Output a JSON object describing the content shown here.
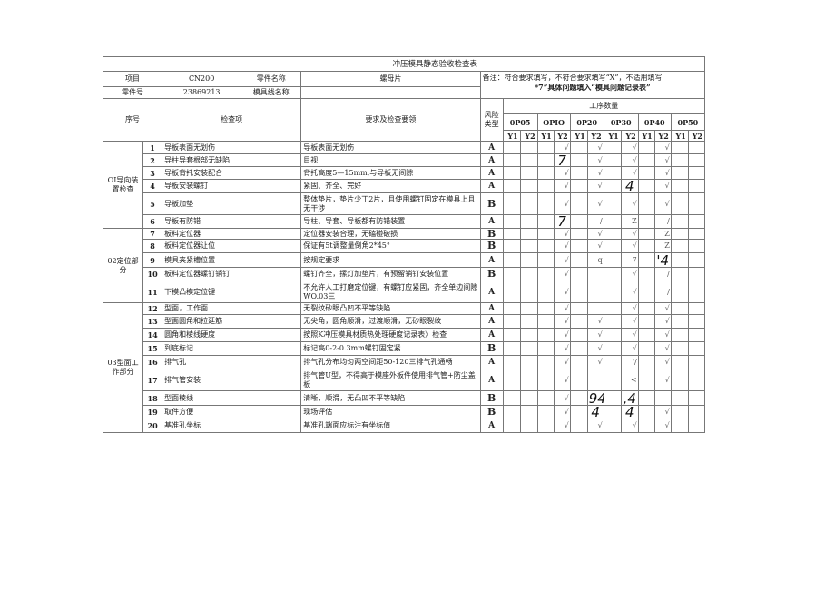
{
  "title": "冲压模具静态验收检查表",
  "header": {
    "project_label": "项目",
    "project_value": "CN200",
    "part_name_label": "零件名称",
    "part_name_value": "螺母片",
    "part_no_label": "零件号",
    "part_no_value": "23869213",
    "die_line_label": "模具线名称",
    "die_line_value": "",
    "note_line1": "备注：符合要求填写，不符合要求填写“X”，不适用填写",
    "note_line2": "*7”具体问题填入“模具问题记录表”"
  },
  "columns": {
    "no": "序号",
    "item": "检查项",
    "requirement": "要求及检查要领",
    "risk": "风险类型",
    "process_count": "工序数量",
    "ops": [
      "0P05",
      "OPIO",
      "0P20",
      "0P30",
      "0P40",
      "0P50"
    ],
    "sub": [
      "Y1",
      "Y2",
      "Y1",
      "Y2",
      "Y1",
      "Y2",
      "Y1",
      "Y2",
      "Y1",
      "Y2",
      "Y1",
      "Y2"
    ]
  },
  "sections": [
    {
      "name": "OI导向装置检查",
      "rows": 6
    },
    {
      "name": "02定位部分",
      "rows": 5
    },
    {
      "name": "03型面工作部分",
      "rows": 9
    }
  ],
  "rows": [
    {
      "no": "1",
      "item": "导板表面无划伤",
      "req": "导板表面无划伤",
      "risk": "A",
      "marks": [
        "",
        "",
        "",
        "√",
        "",
        "√",
        "",
        "√",
        "",
        "√",
        "",
        ""
      ]
    },
    {
      "no": "2",
      "item": "导柱导套根部无缺陷",
      "req": "目视",
      "risk": "A",
      "marks": [
        "",
        "",
        "",
        "7",
        "",
        "√",
        "",
        "√",
        "",
        "√",
        "",
        ""
      ]
    },
    {
      "no": "3",
      "item": "导板背托安装配合",
      "req": "背托高度5—15mm,与导板无间隙",
      "risk": "A",
      "marks": [
        "",
        "",
        "",
        "√",
        "",
        "√",
        "",
        "√",
        "",
        "√",
        "",
        ""
      ]
    },
    {
      "no": "4",
      "item": "导板安装螺钉",
      "req": "紧固、齐全、完好",
      "risk": "A",
      "marks": [
        "",
        "",
        "",
        "√",
        "",
        "√",
        "",
        "4",
        "",
        "√",
        "",
        ""
      ]
    },
    {
      "no": "5",
      "item": "导板加垫",
      "req": "整体垫片，垫片少丁2片，且使用螺钉固定在模具上且无干涉",
      "risk": "B",
      "marks": [
        "",
        "",
        "",
        "√",
        "",
        "√",
        "",
        "√",
        "",
        "√",
        "",
        ""
      ]
    },
    {
      "no": "6",
      "item": "导板有防错",
      "req": "导柱、导套、导板都有防错装置",
      "risk": "A",
      "marks": [
        "",
        "",
        "",
        "7",
        "",
        "/",
        "",
        "Z",
        "",
        "/",
        "",
        ""
      ]
    },
    {
      "no": "7",
      "item": "板料定位器",
      "req": "定位器安装合理，无磕碰破损",
      "risk": "B",
      "marks": [
        "",
        "",
        "",
        "√",
        "",
        "√",
        "",
        "√",
        "",
        "Z",
        "",
        ""
      ]
    },
    {
      "no": "8",
      "item": "板料定位器让位",
      "req": "保证有5t调整量倒角2*45°",
      "risk": "B",
      "marks": [
        "",
        "",
        "",
        "√",
        "",
        "√",
        "",
        "√",
        "",
        "Z",
        "",
        ""
      ]
    },
    {
      "no": "9",
      "item": "模具夹紧槽位置",
      "req": "按规定要求",
      "risk": "A",
      "marks": [
        "",
        "",
        "",
        "√",
        "",
        "q",
        "",
        "7",
        "",
        "'4",
        "",
        ""
      ]
    },
    {
      "no": "10",
      "item": "板料定位器螺钉销钉",
      "req": "螺钉齐全，摞灯加垫片，有预留销钉安装位置",
      "risk": "B",
      "marks": [
        "",
        "",
        "",
        "√",
        "",
        "",
        "",
        "√",
        "",
        "/",
        "",
        ""
      ]
    },
    {
      "no": "11",
      "item": "下模凸模定位键",
      "req": "不允许人工打磨定位键，有螺钉应紧固，齐全单边间隙WO.03三",
      "risk": "A",
      "marks": [
        "",
        "",
        "",
        "√",
        "",
        "",
        "",
        "√",
        "",
        "/",
        "",
        ""
      ]
    },
    {
      "no": "12",
      "item": "型面，工作面",
      "req": "无裂纹砂眼凸凹不平等缺陷",
      "risk": "A",
      "marks": [
        "",
        "",
        "",
        "√",
        "",
        "",
        "",
        "√",
        "",
        "√",
        "",
        ""
      ]
    },
    {
      "no": "13",
      "item": "型面圆角和拉延筋",
      "req": "无尖角，圆角顺滑，过渡顺滑，无砂眼裂纹",
      "risk": "A",
      "marks": [
        "",
        "",
        "",
        "√",
        "",
        "√",
        "",
        "√",
        "",
        "√",
        "",
        ""
      ]
    },
    {
      "no": "14",
      "item": "圆角和棱线硬度",
      "req": "按照K冲压模具材质热处理硬度记录表》检查",
      "risk": "A",
      "marks": [
        "",
        "",
        "",
        "√",
        "",
        "√",
        "",
        "√",
        "",
        "√",
        "",
        ""
      ]
    },
    {
      "no": "15",
      "item": "到底标记",
      "req": "标记高0-2-0.3mm螺钉固定紧",
      "risk": "B",
      "marks": [
        "",
        "",
        "",
        "√",
        "",
        "√",
        "",
        "√",
        "",
        "√",
        "",
        ""
      ]
    },
    {
      "no": "16",
      "item": "排气孔",
      "req": "排气孔分布均匀两空间距50-120三排气孔通畅",
      "risk": "A",
      "marks": [
        "",
        "",
        "",
        "√",
        "",
        "√",
        "",
        "'/",
        "",
        "√",
        "",
        ""
      ]
    },
    {
      "no": "17",
      "item": "排气管安装",
      "req": "排气管U型，不得高于模座外板件使用排气管+防尘盖板",
      "risk": "A",
      "marks": [
        "",
        "",
        "",
        "√",
        "",
        "",
        "",
        "<",
        "",
        "√",
        "",
        ""
      ]
    },
    {
      "no": "18",
      "item": "型面棱线",
      "req": "清晰，顺滑，无凸凹不平等缺陷",
      "risk": "B",
      "marks": [
        "",
        "",
        "",
        "√",
        "",
        "94",
        "",
        ",4",
        "",
        "",
        "",
        ""
      ]
    },
    {
      "no": "19",
      "item": "取件方便",
      "req": "现场评估",
      "risk": "B",
      "marks": [
        "",
        "",
        "",
        "√",
        "",
        "4",
        "",
        "4",
        "",
        "√",
        "",
        ""
      ]
    },
    {
      "no": "20",
      "item": "基准孔坐标",
      "req": "基准孔端面应标注有坐标值",
      "risk": "A",
      "marks": [
        "",
        "",
        "",
        "√",
        "",
        "√",
        "",
        "√",
        "",
        "√",
        "",
        ""
      ]
    }
  ]
}
